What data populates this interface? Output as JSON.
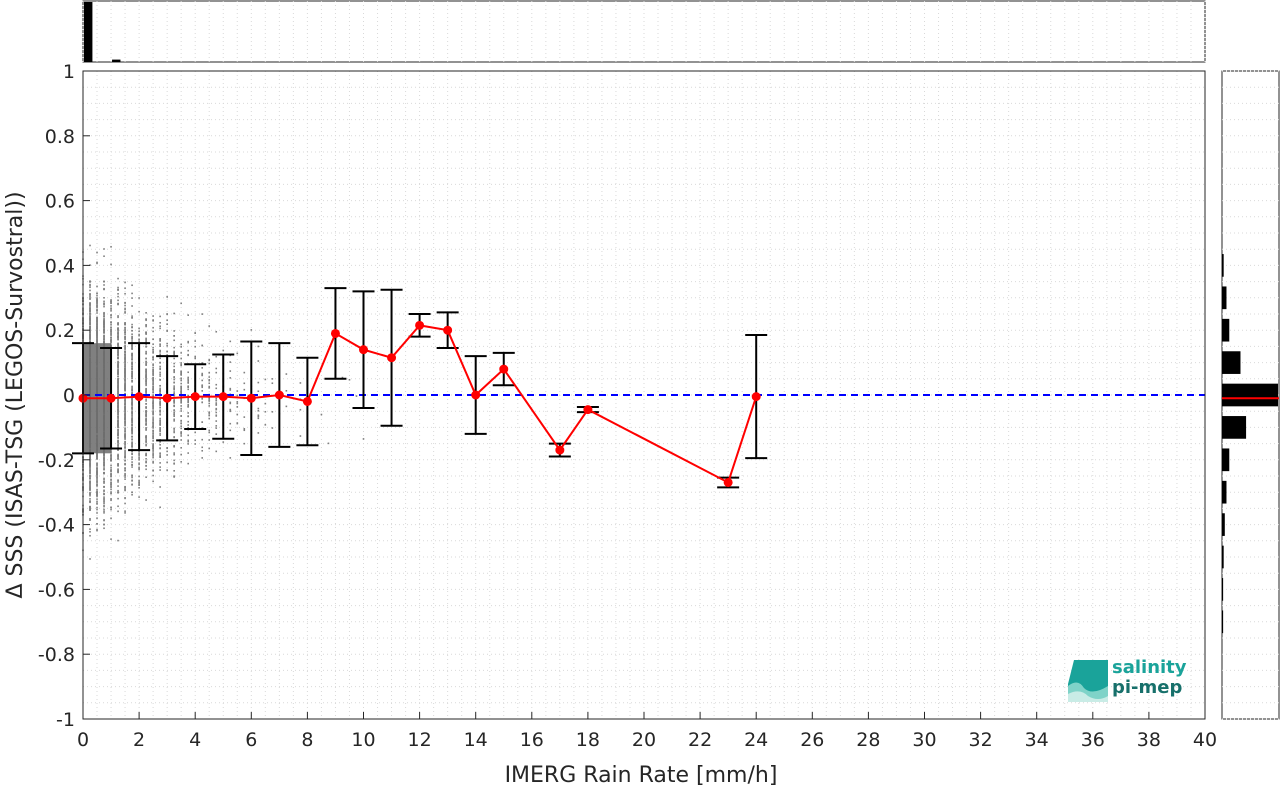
{
  "chart_data": {
    "type": "scatter",
    "xlabel": "IMERG Rain Rate [mm/h]",
    "ylabel": "Δ SSS (ISAS-TSG (LEGOS-Survostral))",
    "xlim": [
      0,
      40
    ],
    "ylim": [
      -1,
      1
    ],
    "x_ticks": [
      "0",
      "2",
      "4",
      "6",
      "8",
      "10",
      "12",
      "14",
      "16",
      "18",
      "20",
      "22",
      "24",
      "26",
      "28",
      "30",
      "32",
      "34",
      "36",
      "38",
      "40"
    ],
    "y_ticks": [
      "-1",
      "-0.8",
      "-0.6",
      "-0.4",
      "-0.2",
      "0",
      "0.2",
      "0.4",
      "0.6",
      "0.8",
      "1"
    ],
    "grid": true,
    "reference_line": {
      "y": 0,
      "color": "#0000ff",
      "style": "dashed"
    },
    "binned_mean": {
      "color": "#ff0000",
      "x": [
        0,
        1,
        2,
        3,
        4,
        5,
        6,
        7,
        8,
        9,
        10,
        11,
        12,
        13,
        14,
        15,
        17,
        18,
        23,
        24
      ],
      "mean": [
        -0.01,
        -0.01,
        -0.005,
        -0.01,
        -0.005,
        -0.005,
        -0.01,
        0.0,
        -0.02,
        0.19,
        0.14,
        0.115,
        0.215,
        0.2,
        0.0,
        0.08,
        -0.17,
        -0.045,
        -0.27,
        -0.005
      ],
      "std": [
        0.17,
        0.155,
        0.165,
        0.13,
        0.1,
        0.13,
        0.175,
        0.16,
        0.135,
        0.14,
        0.18,
        0.21,
        0.035,
        0.055,
        0.12,
        0.05,
        0.02,
        0.008,
        0.015,
        0.19
      ]
    },
    "scatter_color": "#808080",
    "top_histogram": {
      "bins": [
        0,
        1,
        2,
        3,
        4
      ],
      "relative_counts": [
        1.0,
        0.04,
        0.015,
        0.007,
        0.003
      ]
    },
    "right_histogram": {
      "bin_centers": [
        0.4,
        0.3,
        0.2,
        0.1,
        0.0,
        -0.1,
        -0.2,
        -0.3,
        -0.4,
        -0.5,
        -0.6,
        -0.7
      ],
      "relative_counts": [
        0.03,
        0.08,
        0.13,
        0.33,
        1.0,
        0.43,
        0.13,
        0.08,
        0.05,
        0.03,
        0.02,
        0.02
      ],
      "median_line_color": "#ff0000"
    }
  },
  "logo": {
    "line1": "salinity",
    "line2": "pi-mep"
  }
}
